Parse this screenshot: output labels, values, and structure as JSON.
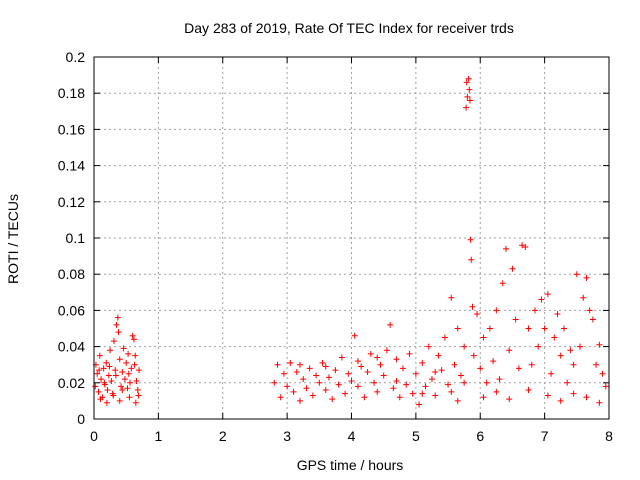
{
  "chart_data": {
    "type": "scatter",
    "title": "Day 283 of 2019, Rate Of TEC Index for receiver trds",
    "xlabel": "GPS time / hours",
    "ylabel": "ROTI / TECUs",
    "xlim": [
      0,
      8
    ],
    "ylim": [
      0,
      0.2
    ],
    "x_ticks": [
      0,
      1,
      2,
      3,
      4,
      5,
      6,
      7,
      8
    ],
    "x_tick_labels": [
      "0",
      "1",
      "2",
      "3",
      "4",
      "5",
      "6",
      "7",
      "8"
    ],
    "y_ticks": [
      0,
      0.02,
      0.04,
      0.06,
      0.08,
      0.1,
      0.12,
      0.14,
      0.16,
      0.18,
      0.2
    ],
    "y_tick_labels": [
      "0",
      "0.02",
      "0.04",
      "0.06",
      "0.08",
      "0.1",
      "0.12",
      "0.14",
      "0.16",
      "0.18",
      "0.2"
    ],
    "grid": true,
    "legend": "none",
    "marker": "plus",
    "colors": {
      "series": "#ff0000",
      "grid": "#a0a0a0",
      "axis": "#000000"
    },
    "series": [
      {
        "name": "ROTI",
        "points": [
          [
            0.02,
            0.018
          ],
          [
            0.05,
            0.025
          ],
          [
            0.07,
            0.015
          ],
          [
            0.09,
            0.035
          ],
          [
            0.11,
            0.022
          ],
          [
            0.13,
            0.012
          ],
          [
            0.15,
            0.028
          ],
          [
            0.17,
            0.019
          ],
          [
            0.19,
            0.031
          ],
          [
            0.21,
            0.016
          ],
          [
            0.23,
            0.024
          ],
          [
            0.25,
            0.038
          ],
          [
            0.27,
            0.021
          ],
          [
            0.29,
            0.014
          ],
          [
            0.31,
            0.043
          ],
          [
            0.33,
            0.027
          ],
          [
            0.35,
            0.052
          ],
          [
            0.37,
            0.056
          ],
          [
            0.38,
            0.048
          ],
          [
            0.4,
            0.033
          ],
          [
            0.42,
            0.018
          ],
          [
            0.44,
            0.026
          ],
          [
            0.46,
            0.039
          ],
          [
            0.48,
            0.022
          ],
          [
            0.5,
            0.031
          ],
          [
            0.52,
            0.017
          ],
          [
            0.54,
            0.025
          ],
          [
            0.56,
            0.02
          ],
          [
            0.58,
            0.028
          ],
          [
            0.6,
            0.046
          ],
          [
            0.62,
            0.044
          ],
          [
            0.64,
            0.035
          ],
          [
            0.66,
            0.021
          ],
          [
            0.68,
            0.016
          ],
          [
            0.7,
            0.027
          ],
          [
            0.1,
            0.011
          ],
          [
            0.2,
            0.009
          ],
          [
            0.3,
            0.013
          ],
          [
            0.4,
            0.01
          ],
          [
            0.55,
            0.012
          ],
          [
            0.65,
            0.009
          ],
          [
            0.03,
            0.03
          ],
          [
            0.08,
            0.027
          ],
          [
            0.16,
            0.02
          ],
          [
            0.24,
            0.029
          ],
          [
            0.34,
            0.024
          ],
          [
            0.44,
            0.016
          ],
          [
            0.53,
            0.036
          ],
          [
            0.63,
            0.03
          ],
          [
            0.69,
            0.013
          ],
          [
            2.8,
            0.02
          ],
          [
            2.85,
            0.03
          ],
          [
            2.9,
            0.012
          ],
          [
            2.95,
            0.025
          ],
          [
            3.0,
            0.018
          ],
          [
            3.05,
            0.031
          ],
          [
            3.1,
            0.015
          ],
          [
            3.15,
            0.026
          ],
          [
            3.2,
            0.01
          ],
          [
            3.25,
            0.022
          ],
          [
            3.3,
            0.017
          ],
          [
            3.35,
            0.028
          ],
          [
            3.4,
            0.013
          ],
          [
            3.45,
            0.024
          ],
          [
            3.5,
            0.02
          ],
          [
            3.55,
            0.031
          ],
          [
            3.6,
            0.016
          ],
          [
            3.65,
            0.023
          ],
          [
            3.7,
            0.011
          ],
          [
            3.75,
            0.027
          ],
          [
            3.8,
            0.019
          ],
          [
            3.85,
            0.034
          ],
          [
            3.9,
            0.014
          ],
          [
            3.95,
            0.025
          ],
          [
            4.0,
            0.021
          ],
          [
            4.05,
            0.046
          ],
          [
            4.1,
            0.018
          ],
          [
            4.15,
            0.029
          ],
          [
            4.2,
            0.012
          ],
          [
            4.25,
            0.026
          ],
          [
            4.3,
            0.036
          ],
          [
            4.35,
            0.02
          ],
          [
            4.4,
            0.015
          ],
          [
            4.45,
            0.03
          ],
          [
            4.5,
            0.024
          ],
          [
            4.55,
            0.038
          ],
          [
            4.6,
            0.052
          ],
          [
            4.65,
            0.017
          ],
          [
            4.7,
            0.033
          ],
          [
            4.75,
            0.012
          ],
          [
            4.8,
            0.028
          ],
          [
            4.85,
            0.019
          ],
          [
            4.9,
            0.036
          ],
          [
            4.95,
            0.014
          ],
          [
            5.0,
            0.025
          ],
          [
            5.05,
            0.008
          ],
          [
            5.1,
            0.031
          ],
          [
            5.15,
            0.018
          ],
          [
            5.2,
            0.04
          ],
          [
            5.25,
            0.022
          ],
          [
            5.3,
            0.013
          ],
          [
            5.35,
            0.035
          ],
          [
            5.4,
            0.027
          ],
          [
            5.45,
            0.045
          ],
          [
            5.5,
            0.019
          ],
          [
            5.55,
            0.067
          ],
          [
            5.6,
            0.03
          ],
          [
            5.65,
            0.05
          ],
          [
            5.7,
            0.024
          ],
          [
            5.75,
            0.04
          ],
          [
            5.78,
            0.172
          ],
          [
            5.79,
            0.186
          ],
          [
            5.8,
            0.178
          ],
          [
            5.82,
            0.188
          ],
          [
            5.83,
            0.182
          ],
          [
            5.84,
            0.176
          ],
          [
            5.85,
            0.099
          ],
          [
            5.86,
            0.088
          ],
          [
            5.88,
            0.062
          ],
          [
            5.9,
            0.035
          ],
          [
            5.95,
            0.058
          ],
          [
            6.0,
            0.028
          ],
          [
            6.05,
            0.045
          ],
          [
            6.1,
            0.02
          ],
          [
            6.15,
            0.05
          ],
          [
            6.2,
            0.032
          ],
          [
            6.25,
            0.06
          ],
          [
            6.3,
            0.022
          ],
          [
            6.35,
            0.075
          ],
          [
            6.4,
            0.094
          ],
          [
            6.45,
            0.038
          ],
          [
            6.5,
            0.083
          ],
          [
            6.55,
            0.055
          ],
          [
            6.6,
            0.028
          ],
          [
            6.65,
            0.096
          ],
          [
            6.7,
            0.095
          ],
          [
            6.75,
            0.05
          ],
          [
            6.8,
            0.03
          ],
          [
            6.85,
            0.06
          ],
          [
            6.9,
            0.04
          ],
          [
            6.95,
            0.066
          ],
          [
            7.0,
            0.05
          ],
          [
            7.05,
            0.069
          ],
          [
            7.1,
            0.025
          ],
          [
            7.15,
            0.045
          ],
          [
            7.2,
            0.058
          ],
          [
            7.25,
            0.035
          ],
          [
            7.3,
            0.05
          ],
          [
            7.35,
            0.02
          ],
          [
            7.4,
            0.038
          ],
          [
            7.45,
            0.03
          ],
          [
            7.5,
            0.08
          ],
          [
            7.55,
            0.04
          ],
          [
            7.6,
            0.067
          ],
          [
            7.65,
            0.078
          ],
          [
            7.7,
            0.06
          ],
          [
            7.75,
            0.055
          ],
          [
            7.8,
            0.03
          ],
          [
            7.85,
            0.041
          ],
          [
            7.9,
            0.025
          ],
          [
            7.95,
            0.018
          ],
          [
            5.55,
            0.015
          ],
          [
            5.65,
            0.01
          ],
          [
            5.75,
            0.02
          ],
          [
            6.05,
            0.012
          ],
          [
            6.25,
            0.015
          ],
          [
            6.45,
            0.011
          ],
          [
            6.75,
            0.016
          ],
          [
            7.05,
            0.013
          ],
          [
            7.25,
            0.01
          ],
          [
            7.45,
            0.014
          ],
          [
            7.65,
            0.012
          ],
          [
            7.85,
            0.009
          ],
          [
            3.2,
            0.03
          ],
          [
            3.6,
            0.029
          ],
          [
            4.1,
            0.032
          ],
          [
            4.4,
            0.034
          ],
          [
            4.7,
            0.021
          ],
          [
            5.1,
            0.014
          ],
          [
            5.3,
            0.026
          ]
        ]
      }
    ]
  }
}
